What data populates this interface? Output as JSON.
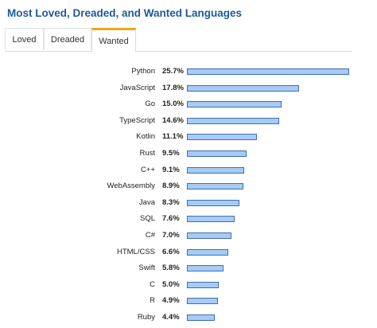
{
  "header": {
    "title": "Most Loved, Dreaded, and Wanted Languages"
  },
  "tabs": [
    {
      "label": "Loved",
      "active": false
    },
    {
      "label": "Dreaded",
      "active": false
    },
    {
      "label": "Wanted",
      "active": true
    }
  ],
  "colors": {
    "title": "#1f5a96",
    "tab_accent": "#f4a61c",
    "bar_fill": "#a7cbf4",
    "bar_border": "#3d6fae"
  },
  "chart_data": {
    "type": "bar",
    "orientation": "horizontal",
    "categories": [
      "Python",
      "JavaScript",
      "Go",
      "TypeScript",
      "Kotlin",
      "Rust",
      "C++",
      "WebAssembly",
      "Java",
      "SQL",
      "C#",
      "HTML/CSS",
      "Swift",
      "C",
      "R",
      "Ruby"
    ],
    "values": [
      25.7,
      17.8,
      15.0,
      14.6,
      11.1,
      9.5,
      9.1,
      8.9,
      8.3,
      7.6,
      7.0,
      6.6,
      5.8,
      5.0,
      4.9,
      4.4
    ],
    "value_labels": [
      "25.7%",
      "17.8%",
      "15.0%",
      "14.6%",
      "11.1%",
      "9.5%",
      "9.1%",
      "8.9%",
      "8.3%",
      "7.6%",
      "7.0%",
      "6.6%",
      "5.8%",
      "5.0%",
      "4.9%",
      "4.4%"
    ],
    "unit": "%",
    "grid": false,
    "legend": "none"
  }
}
